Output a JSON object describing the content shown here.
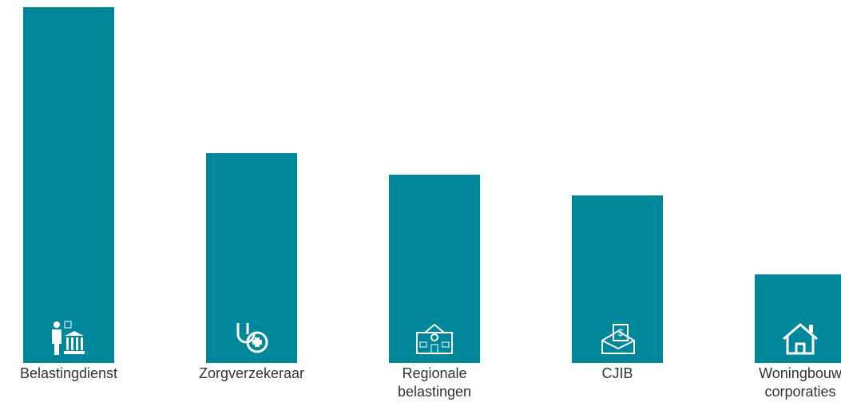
{
  "chart_data": {
    "type": "bar",
    "categories": [
      "Belastingdienst",
      "Zorgverzekeraar",
      "Regionale\nbelastingen",
      "CJIB",
      "Woningbouw\ncorporaties"
    ],
    "values": [
      100,
      59,
      53,
      47,
      25
    ],
    "color": "#00879a",
    "ylim": [
      0,
      100
    ]
  }
}
